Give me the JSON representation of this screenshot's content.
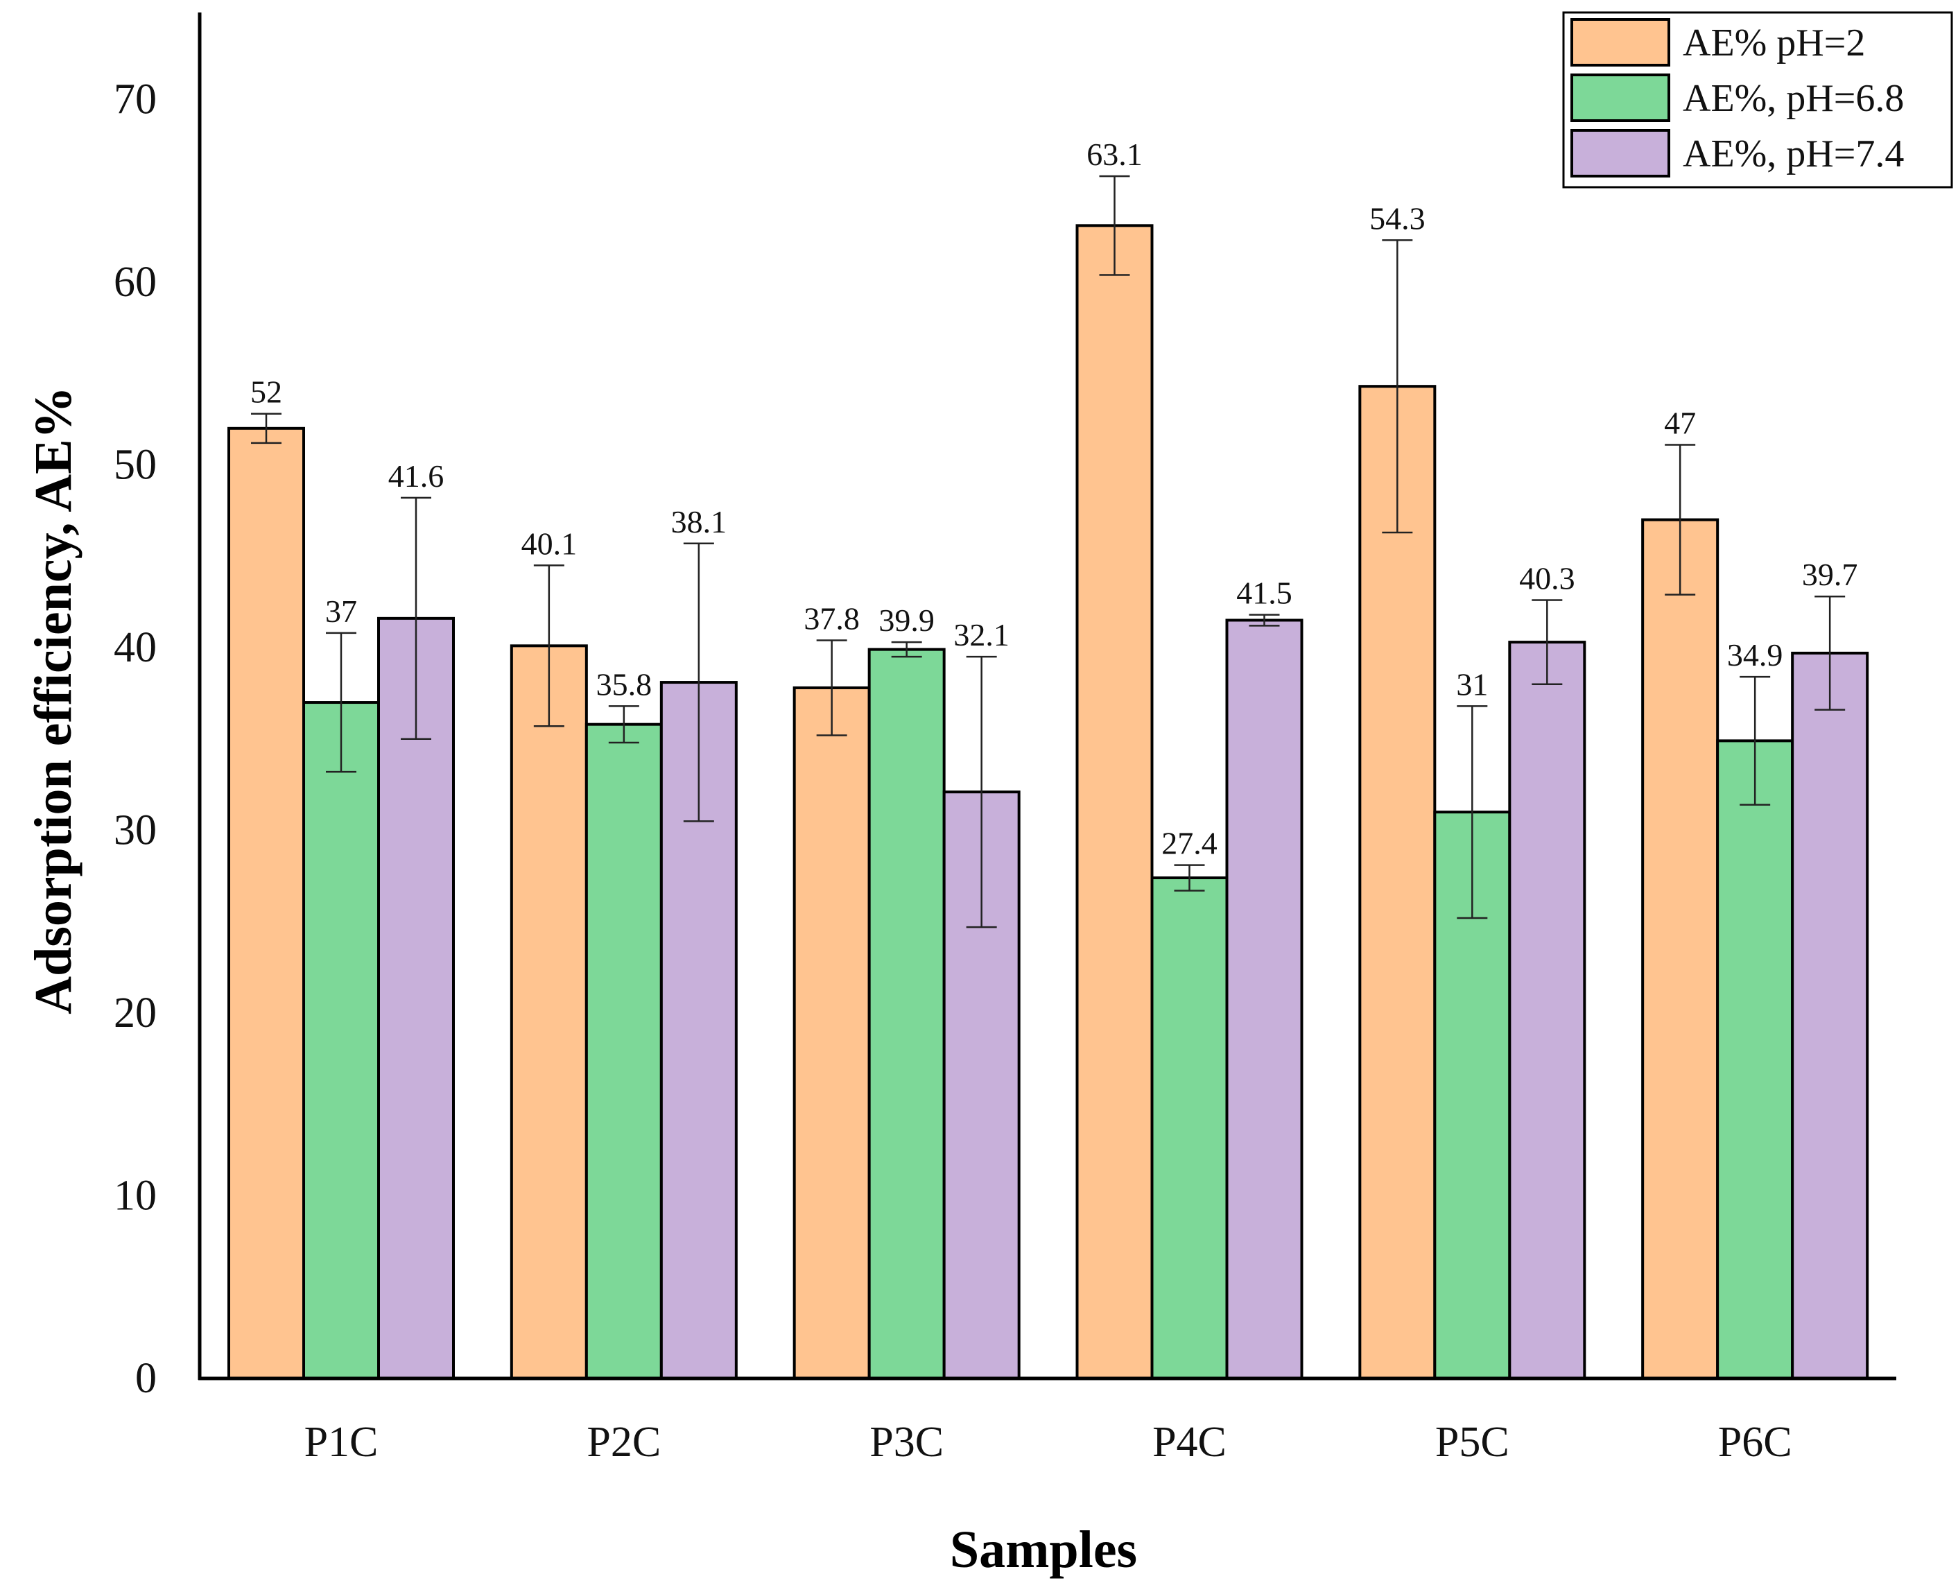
{
  "chart_data": {
    "type": "bar",
    "title": "",
    "xlabel": "Samples",
    "ylabel": "Adsorption efficiency, AE%",
    "ylim": [
      0,
      75
    ],
    "yticks": [
      0,
      10,
      20,
      30,
      40,
      50,
      60,
      70
    ],
    "categories": [
      "P1C",
      "P2C",
      "P3C",
      "P4C",
      "P5C",
      "P6C"
    ],
    "legend_position": "top-right",
    "series": [
      {
        "name": "AE% pH=2",
        "color": "#FFC490",
        "values": [
          52,
          40.1,
          37.8,
          63.1,
          54.3,
          47
        ],
        "labels": [
          "52",
          "40.1",
          "37.8",
          "63.1",
          "54.3",
          "47"
        ],
        "errors": [
          0.8,
          4.4,
          2.6,
          2.7,
          8.0,
          4.1
        ]
      },
      {
        "name": "AE%, pH=6.8",
        "color": "#7DD898",
        "values": [
          37,
          35.8,
          39.9,
          27.4,
          31,
          34.9
        ],
        "labels": [
          "37",
          "35.8",
          "39.9",
          "27.4",
          "31",
          "34.9"
        ],
        "errors": [
          3.8,
          1.0,
          0.4,
          0.7,
          5.8,
          3.5
        ]
      },
      {
        "name": "AE%, pH=7.4",
        "color": "#C8B0DA",
        "values": [
          41.6,
          38.1,
          32.1,
          41.5,
          40.3,
          39.7
        ],
        "labels": [
          "41.6",
          "38.1",
          "32.1",
          "41.5",
          "40.3",
          "39.7"
        ],
        "errors": [
          6.6,
          7.6,
          7.4,
          0.3,
          2.3,
          3.1
        ]
      }
    ]
  }
}
